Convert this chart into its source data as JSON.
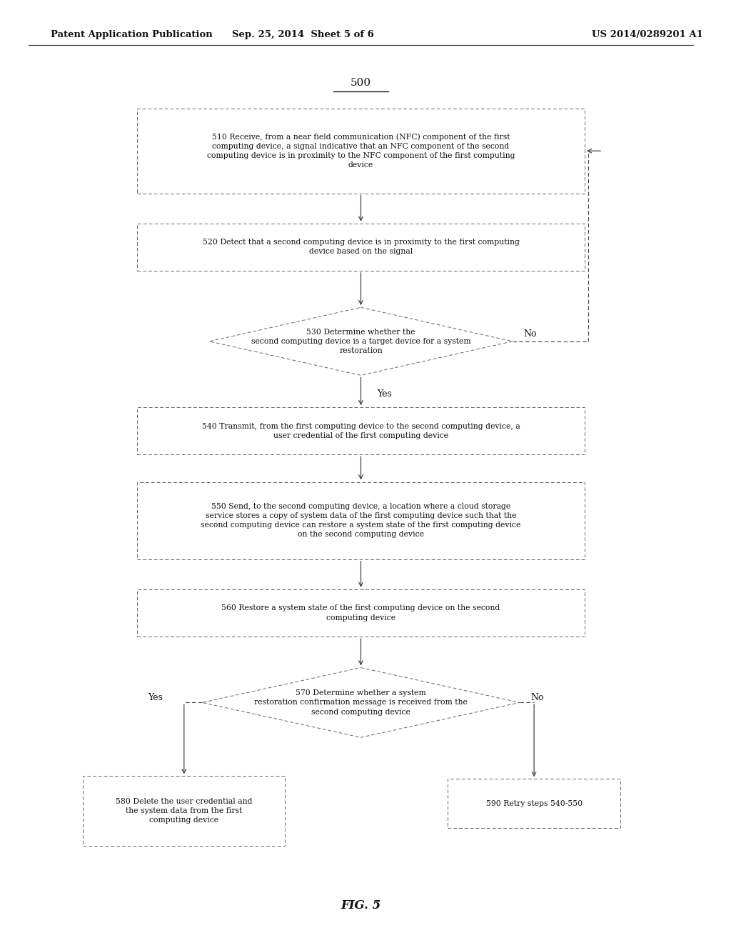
{
  "header_left": "Patent Application Publication",
  "header_center": "Sep. 25, 2014  Sheet 5 of 6",
  "header_right": "US 2014/0289201 A1",
  "fig_label": "FIG. 5",
  "diagram_number": "500",
  "background_color": "#ffffff",
  "box_edge_color": "#666666",
  "arrow_color": "#444444",
  "text_color": "#111111",
  "b510_text": "510 Receive, from a near field communication (NFC) component of the first\ncomputing device, a signal indicative that an NFC component of the second\ncomputing device is in proximity to the NFC component of the first computing\ndevice",
  "b520_text": "520 Detect that a second computing device is in proximity to the first computing\ndevice based on the signal",
  "b530_text": "530 Determine whether the\nsecond computing device is a target device for a system\nrestoration",
  "b540_text": "540 Transmit, from the first computing device to the second computing device, a\nuser credential of the first computing device",
  "b550_text": "550 Send, to the second computing device, a location where a cloud storage\nservice stores a copy of system data of the first computing device such that the\nsecond computing device can restore a system state of the first computing device\non the second computing device",
  "b560_text": "560 Restore a system state of the first computing device on the second\ncomputing device",
  "b570_text": "570 Determine whether a system\nrestoration confirmation message is received from the\nsecond computing device",
  "b580_text": "580 Delete the user credential and\nthe system data from the first\ncomputing device",
  "b590_text": "590 Retry steps 540-550"
}
